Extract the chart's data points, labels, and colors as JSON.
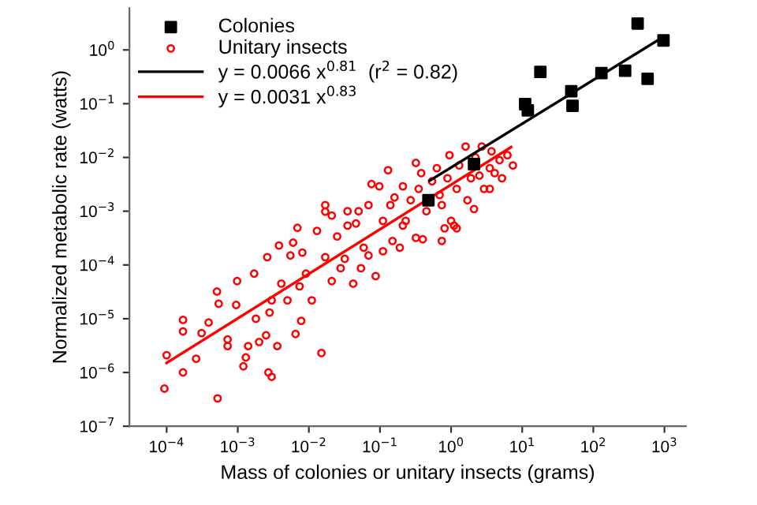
{
  "chart_data": {
    "type": "scatter",
    "xlabel": "Mass of colonies or unitary insects (grams)",
    "ylabel": "Normalized metabolic rate (watts)",
    "log": "xy",
    "grid": false,
    "legend": "top left",
    "xlim": [
      3e-05,
      2000
    ],
    "ylim": [
      1e-07,
      6
    ],
    "xticks": [
      {
        "value": 0.0001,
        "label": "10$^{−4}$"
      },
      {
        "value": 0.001,
        "label": "10$^{−3}$"
      },
      {
        "value": 0.01,
        "label": "10$^{−2}$"
      },
      {
        "value": 0.1,
        "label": "10$^{−1}$"
      },
      {
        "value": 1,
        "label": "10$^{0}$"
      },
      {
        "value": 10,
        "label": "10$^{1}$"
      },
      {
        "value": 100,
        "label": "10$^{2}$"
      },
      {
        "value": 1000,
        "label": "10$^{3}$"
      }
    ],
    "yticks": [
      {
        "value": 1e-07,
        "label": "10$^{−7}$"
      },
      {
        "value": 1e-06,
        "label": "10$^{−6}$"
      },
      {
        "value": 1e-05,
        "label": "10$^{−5}$"
      },
      {
        "value": 0.0001,
        "label": "10$^{−4}$"
      },
      {
        "value": 0.001,
        "label": "10$^{−3}$"
      },
      {
        "value": 0.01,
        "label": "10$^{−2}$"
      },
      {
        "value": 0.1,
        "label": "10$^{−1}$"
      },
      {
        "value": 1,
        "label": "10$^{0}$"
      }
    ],
    "series": [
      {
        "name": "Colonies",
        "marker": "square",
        "color": "#000000",
        "x": [
          0.48,
          2.1,
          11,
          12,
          18,
          49,
          51,
          130,
          280,
          420,
          580,
          970
        ],
        "values": [
          0.0016,
          0.0075,
          0.098,
          0.075,
          0.39,
          0.17,
          0.091,
          0.37,
          0.41,
          3.1,
          0.29,
          1.5
        ]
      },
      {
        "name": "Unitary insects",
        "marker": "circle",
        "color": "#ff0000",
        "x": [
          9.3e-05,
          0.0001,
          0.00017,
          0.00017,
          0.00017,
          0.00026,
          0.00031,
          0.00039,
          0.00052,
          0.00051,
          0.00054,
          0.00072,
          0.00072,
          0.00098,
          0.00095,
          0.0012,
          0.0013,
          0.0014,
          0.0017,
          0.0018,
          0.002,
          0.0025,
          0.0027,
          0.003,
          0.0026,
          0.0028,
          0.003,
          0.0036,
          0.0038,
          0.0041,
          0.005,
          0.006,
          0.0069,
          0.0065,
          0.0078,
          0.0074,
          0.0081,
          0.0091,
          0.011,
          0.013,
          0.015,
          0.017,
          0.017,
          0.021,
          0.025,
          0.028,
          0.032,
          0.035,
          0.042,
          0.05,
          0.054,
          0.059,
          0.069,
          0.087,
          0.11,
          0.11,
          0.15,
          0.19,
          0.21,
          0.32,
          0.4,
          0.74,
          0.81,
          1.2,
          0.0055,
          0.017,
          0.021,
          0.035,
          0.046,
          0.069,
          0.076,
          0.098,
          0.13,
          0.14,
          0.16,
          0.21,
          0.23,
          0.27,
          0.35,
          0.38,
          0.45,
          0.54,
          0.63,
          0.69,
          0.74,
          0.89,
          0.95,
          1.0,
          1.2,
          1.3,
          1.6,
          1.7,
          1.9,
          2.2,
          2.5,
          2.7,
          2.9,
          3.5,
          3.7,
          4.1,
          4.8,
          5.2,
          6.2,
          7.4,
          0.32,
          3.5,
          2.1,
          1.1
        ],
        "values": [
          5e-07,
          2.1e-06,
          9.5e-06,
          5.8e-06,
          1e-06,
          1.8e-06,
          5.4e-06,
          8.5e-06,
          3.3e-07,
          3.2e-05,
          1.9e-05,
          4.1e-06,
          3.1e-06,
          5e-05,
          1.8e-05,
          1.3e-06,
          1.9e-06,
          3.1e-06,
          6.9e-05,
          1e-05,
          3.7e-06,
          4.9e-06,
          1e-06,
          8.3e-07,
          0.00014,
          1.3e-05,
          2.2e-05,
          3.1e-06,
          0.00023,
          4.5e-05,
          2.2e-05,
          0.00026,
          0.00049,
          5.2e-06,
          9.1e-06,
          4e-05,
          0.00017,
          6.9e-05,
          2.2e-05,
          0.00043,
          2.3e-06,
          0.00014,
          0.00098,
          5e-05,
          0.00034,
          8.7e-05,
          0.00013,
          0.00054,
          4.5e-05,
          0.001,
          8.7e-05,
          0.00021,
          0.00015,
          6.2e-05,
          0.00018,
          0.00066,
          0.00028,
          0.00021,
          0.00054,
          0.00032,
          0.0003,
          0.00028,
          0.00048,
          0.00048,
          0.00015,
          0.0013,
          0.00083,
          0.001,
          0.00059,
          0.0013,
          0.0032,
          0.0029,
          0.0058,
          0.0013,
          0.0018,
          0.0029,
          0.00066,
          0.0016,
          0.0026,
          0.0051,
          0.001,
          0.0036,
          0.0063,
          0.002,
          0.0013,
          0.0041,
          0.011,
          0.00066,
          0.0026,
          0.0071,
          0.016,
          0.0016,
          0.0041,
          0.01,
          0.0046,
          0.016,
          0.0026,
          0.0063,
          0.013,
          0.0051,
          0.0089,
          0.0041,
          0.011,
          0.0071,
          0.0079,
          0.0026,
          0.0011,
          0.00054
        ]
      },
      {
        "name": "y = 0.0066 x$^{0.81}$  (r$^{2}$ = 0.82)",
        "type": "line",
        "color": "#000000",
        "line_style": "solid",
        "x": [
          0.5,
          1000
        ],
        "values": [
          0.0037,
          1.8
        ]
      },
      {
        "name": "y = 0.0031 x$^{0.83}$",
        "type": "line",
        "color": "#ff0000",
        "line_style": "solid",
        "x": [
          0.0001,
          7
        ],
        "values": [
          1.5e-06,
          0.0156
        ]
      }
    ]
  }
}
